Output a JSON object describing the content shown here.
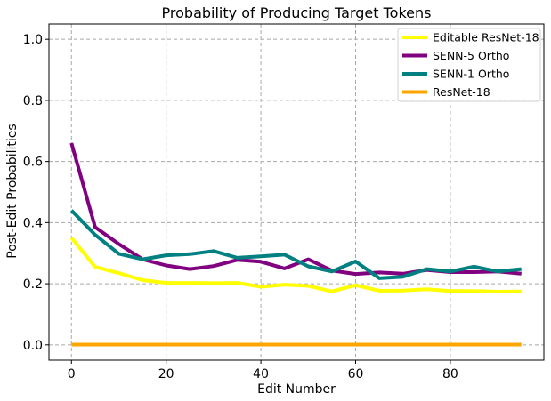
{
  "chart_data": {
    "type": "line",
    "title": "Probability of Producing Target Tokens",
    "xlabel": "Edit Number",
    "ylabel": "Post-Edit Probabilities",
    "xlim": [
      -4.75,
      99.75
    ],
    "ylim": [
      -0.05,
      1.05
    ],
    "xticks": [
      0,
      20,
      40,
      60,
      80
    ],
    "yticks": [
      0.0,
      0.2,
      0.4,
      0.6,
      0.8,
      1.0
    ],
    "xtick_labels": [
      "0",
      "20",
      "40",
      "60",
      "80"
    ],
    "ytick_labels": [
      "0.0",
      "0.2",
      "0.4",
      "0.6",
      "0.8",
      "1.0"
    ],
    "grid": true,
    "legend_position": "top-right",
    "x": [
      0,
      5,
      10,
      15,
      20,
      25,
      30,
      35,
      40,
      45,
      50,
      55,
      60,
      65,
      70,
      75,
      80,
      85,
      90,
      95
    ],
    "series": [
      {
        "name": "Editable ResNet-18",
        "color": "#ffff00",
        "values": [
          0.35,
          0.255,
          0.235,
          0.212,
          0.203,
          0.203,
          0.202,
          0.203,
          0.19,
          0.197,
          0.193,
          0.175,
          0.195,
          0.177,
          0.178,
          0.182,
          0.176,
          0.176,
          0.174,
          0.175
        ]
      },
      {
        "name": "SENN-5 Ortho",
        "color": "#800080",
        "values": [
          0.66,
          0.385,
          0.33,
          0.28,
          0.26,
          0.248,
          0.258,
          0.278,
          0.272,
          0.25,
          0.28,
          0.243,
          0.232,
          0.237,
          0.233,
          0.245,
          0.238,
          0.238,
          0.24,
          0.233
        ]
      },
      {
        "name": "SENN-1 Ortho",
        "color": "#008080",
        "values": [
          0.44,
          0.36,
          0.298,
          0.28,
          0.293,
          0.297,
          0.307,
          0.285,
          0.29,
          0.295,
          0.257,
          0.24,
          0.273,
          0.218,
          0.223,
          0.248,
          0.24,
          0.256,
          0.24,
          0.248
        ]
      },
      {
        "name": "ResNet-18",
        "color": "#ffa500",
        "values": [
          0.001,
          0.001,
          0.001,
          0.001,
          0.001,
          0.001,
          0.001,
          0.001,
          0.001,
          0.001,
          0.001,
          0.001,
          0.001,
          0.001,
          0.001,
          0.001,
          0.001,
          0.001,
          0.001,
          0.001
        ]
      }
    ]
  }
}
